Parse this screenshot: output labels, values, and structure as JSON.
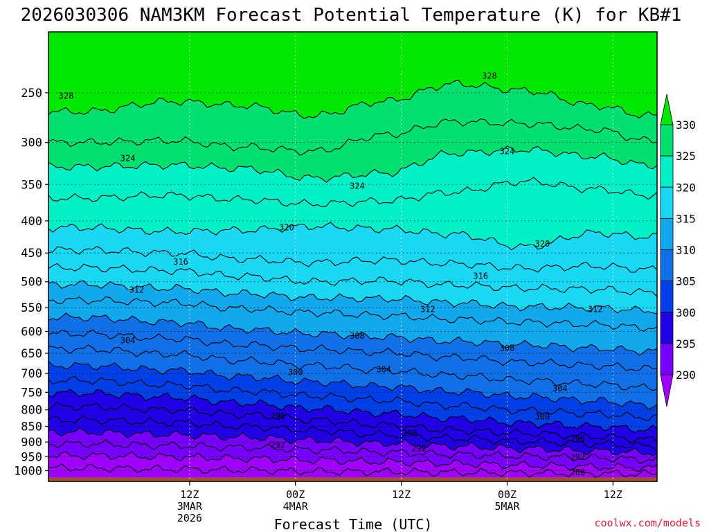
{
  "chart_data": {
    "type": "contour",
    "title": "2026030306 NAM3KM Forecast Potential Temperature (K) for KB#1",
    "xlabel": "Forecast Time (UTC)",
    "ylabel": "",
    "credit": "coolwx.com/models",
    "y_scale": "log",
    "y_direction": "pressure decreasing upward",
    "ylim": [
      1040,
      200
    ],
    "xlim_hours": [
      -10,
      59
    ],
    "y_ticks": [
      250,
      300,
      350,
      400,
      450,
      500,
      550,
      600,
      650,
      700,
      750,
      800,
      850,
      900,
      950,
      1000
    ],
    "x_ticks": [
      {
        "hour": 6,
        "label": "12Z",
        "sub1": "3MAR",
        "sub2": "2026"
      },
      {
        "hour": 18,
        "label": "00Z",
        "sub1": "4MAR",
        "sub2": ""
      },
      {
        "hour": 30,
        "label": "12Z",
        "sub1": "",
        "sub2": ""
      },
      {
        "hour": 42,
        "label": "00Z",
        "sub1": "5MAR",
        "sub2": ""
      },
      {
        "hour": 54,
        "label": "12Z",
        "sub1": "",
        "sub2": ""
      }
    ],
    "color_levels": [
      290,
      295,
      300,
      305,
      310,
      315,
      320,
      325,
      330
    ],
    "color_fills": [
      "#a000ff",
      "#7800ff",
      "#2000e6",
      "#0040e6",
      "#1070e8",
      "#12a8ee",
      "#18d8f4",
      "#00f0c8",
      "#00e070",
      "#00e800"
    ],
    "contour_interval": 2,
    "series": [
      {
        "name": "328",
        "hours": [
          -6,
          4,
          12,
          20,
          28,
          36,
          44,
          52,
          58
        ],
        "pressure": [
          268,
          258,
          262,
          272,
          258,
          242,
          248,
          262,
          272
        ]
      },
      {
        "name": "326",
        "hours": [
          -6,
          4,
          12,
          20,
          28,
          36,
          44,
          52,
          58
        ],
        "pressure": [
          300,
          298,
          305,
          310,
          292,
          278,
          280,
          286,
          298
        ]
      },
      {
        "name": "324",
        "hours": [
          -6,
          4,
          12,
          20,
          28,
          36,
          44,
          52,
          58
        ],
        "pressure": [
          328,
          326,
          330,
          342,
          336,
          312,
          308,
          316,
          326
        ]
      },
      {
        "name": "322",
        "hours": [
          -6,
          4,
          12,
          20,
          28,
          36,
          44,
          52,
          58
        ],
        "pressure": [
          368,
          364,
          370,
          376,
          372,
          360,
          346,
          356,
          364
        ]
      },
      {
        "name": "320",
        "hours": [
          -6,
          4,
          12,
          20,
          28,
          36,
          44,
          52,
          58
        ],
        "pressure": [
          410,
          416,
          414,
          408,
          412,
          420,
          440,
          418,
          424
        ]
      },
      {
        "name": "318",
        "hours": [
          -6,
          4,
          12,
          20,
          28,
          36,
          44,
          52,
          58
        ],
        "pressure": [
          445,
          450,
          460,
          466,
          462,
          468,
          476,
          472,
          478
        ]
      },
      {
        "name": "316",
        "hours": [
          -6,
          4,
          12,
          20,
          28,
          36,
          44,
          52,
          58
        ],
        "pressure": [
          475,
          480,
          490,
          500,
          498,
          506,
          512,
          514,
          520
        ]
      },
      {
        "name": "314",
        "hours": [
          -6,
          4,
          12,
          20,
          28,
          36,
          44,
          52,
          58
        ],
        "pressure": [
          505,
          512,
          522,
          530,
          532,
          540,
          548,
          550,
          556
        ]
      },
      {
        "name": "312",
        "hours": [
          -6,
          4,
          12,
          20,
          28,
          36,
          44,
          52,
          58
        ],
        "pressure": [
          535,
          540,
          552,
          560,
          566,
          574,
          580,
          585,
          592
        ]
      },
      {
        "name": "310",
        "hours": [
          -6,
          4,
          12,
          20,
          28,
          36,
          44,
          52,
          58
        ],
        "pressure": [
          570,
          580,
          595,
          605,
          612,
          622,
          630,
          638,
          645
        ]
      },
      {
        "name": "308",
        "hours": [
          -6,
          4,
          12,
          20,
          28,
          36,
          44,
          52,
          58
        ],
        "pressure": [
          605,
          616,
          630,
          640,
          648,
          660,
          672,
          680,
          688
        ]
      },
      {
        "name": "306",
        "hours": [
          -6,
          4,
          12,
          20,
          28,
          36,
          44,
          52,
          58
        ],
        "pressure": [
          640,
          652,
          668,
          680,
          692,
          705,
          718,
          728,
          738
        ]
      },
      {
        "name": "304",
        "hours": [
          -6,
          4,
          12,
          20,
          28,
          36,
          44,
          52,
          58
        ],
        "pressure": [
          680,
          692,
          708,
          722,
          734,
          748,
          762,
          774,
          786
        ]
      },
      {
        "name": "302",
        "hours": [
          -6,
          4,
          12,
          20,
          28,
          36,
          44,
          52,
          58
        ],
        "pressure": [
          718,
          730,
          746,
          760,
          772,
          788,
          802,
          812,
          822
        ]
      },
      {
        "name": "300",
        "hours": [
          -6,
          4,
          12,
          20,
          28,
          36,
          44,
          52,
          58
        ],
        "pressure": [
          752,
          764,
          780,
          796,
          810,
          826,
          840,
          850,
          860
        ]
      },
      {
        "name": "298",
        "hours": [
          -6,
          4,
          12,
          20,
          28,
          36,
          44,
          52,
          58
        ],
        "pressure": [
          790,
          800,
          814,
          830,
          846,
          862,
          872,
          882,
          892
        ]
      },
      {
        "name": "296",
        "hours": [
          -6,
          4,
          12,
          20,
          28,
          36,
          44,
          52,
          58
        ],
        "pressure": [
          830,
          838,
          850,
          862,
          876,
          888,
          898,
          906,
          914
        ]
      },
      {
        "name": "294",
        "hours": [
          -6,
          4,
          12,
          20,
          28,
          36,
          44,
          52,
          58
        ],
        "pressure": [
          868,
          876,
          884,
          894,
          904,
          914,
          922,
          930,
          936
        ]
      },
      {
        "name": "292",
        "hours": [
          -6,
          4,
          12,
          20,
          28,
          36,
          44,
          52,
          58
        ],
        "pressure": [
          906,
          912,
          918,
          926,
          934,
          942,
          948,
          954,
          960
        ]
      },
      {
        "name": "290",
        "hours": [
          -6,
          4,
          12,
          20,
          28,
          36,
          44,
          52,
          58
        ],
        "pressure": [
          946,
          950,
          956,
          962,
          968,
          974,
          980,
          986,
          990
        ]
      },
      {
        "name": "288",
        "hours": [
          -6,
          4,
          12,
          20,
          28,
          36,
          44,
          52,
          58
        ],
        "pressure": [
          990,
          994,
          998,
          1002,
          1004,
          1006,
          1008,
          1010,
          1012
        ]
      }
    ],
    "contour_labels": [
      {
        "text": "328",
        "hour": -8,
        "pressure": 253
      },
      {
        "text": "328",
        "hour": 40,
        "pressure": 235
      },
      {
        "text": "324",
        "hour": -1,
        "pressure": 318
      },
      {
        "text": "324",
        "hour": 25,
        "pressure": 352
      },
      {
        "text": "324",
        "hour": 42,
        "pressure": 310
      },
      {
        "text": "320",
        "hour": 17,
        "pressure": 410
      },
      {
        "text": "320",
        "hour": 46,
        "pressure": 435
      },
      {
        "text": "316",
        "hour": 5,
        "pressure": 465
      },
      {
        "text": "316",
        "hour": 39,
        "pressure": 490
      },
      {
        "text": "312",
        "hour": 0,
        "pressure": 515
      },
      {
        "text": "312",
        "hour": 33,
        "pressure": 553
      },
      {
        "text": "312",
        "hour": 52,
        "pressure": 553
      },
      {
        "text": "308",
        "hour": 25,
        "pressure": 610
      },
      {
        "text": "308",
        "hour": 42,
        "pressure": 638
      },
      {
        "text": "304",
        "hour": -1,
        "pressure": 620
      },
      {
        "text": "304",
        "hour": 28,
        "pressure": 690
      },
      {
        "text": "304",
        "hour": 48,
        "pressure": 740
      },
      {
        "text": "300",
        "hour": 18,
        "pressure": 697
      },
      {
        "text": "300",
        "hour": 46,
        "pressure": 820
      },
      {
        "text": "296",
        "hour": 16,
        "pressure": 818
      },
      {
        "text": "296",
        "hour": 31,
        "pressure": 872
      },
      {
        "text": "296",
        "hour": 50,
        "pressure": 890
      },
      {
        "text": "292",
        "hour": 16,
        "pressure": 910
      },
      {
        "text": "292",
        "hour": 32,
        "pressure": 922
      },
      {
        "text": "292",
        "hour": 50,
        "pressure": 952
      },
      {
        "text": "288",
        "hour": 50,
        "pressure": 1006
      }
    ],
    "colorbar_labels": [
      "330",
      "325",
      "320",
      "315",
      "310",
      "305",
      "300",
      "295",
      "290"
    ],
    "ground_color": "#a0522d"
  }
}
